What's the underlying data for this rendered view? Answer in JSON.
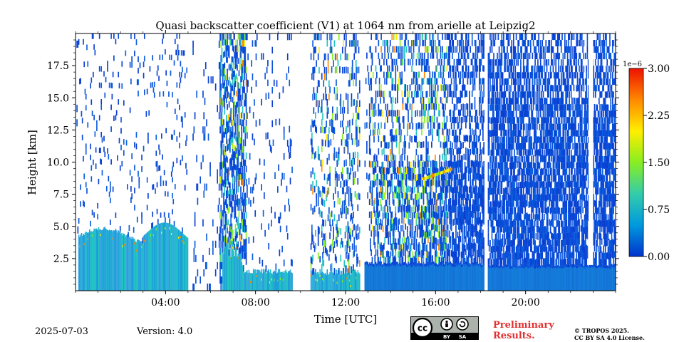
{
  "chart_data": {
    "type": "heatmap",
    "title": "Quasi backscatter coefficient (V1) at 1064 nm from arielle at Leipzig2",
    "xlabel": "Time [UTC]",
    "ylabel": "Height [km]",
    "xlim_hours": [
      0,
      24
    ],
    "ylim_km": [
      0,
      20
    ],
    "x_ticks": [
      {
        "value": 4,
        "label": "04:00"
      },
      {
        "value": 8,
        "label": "08:00"
      },
      {
        "value": 12,
        "label": "12:00"
      },
      {
        "value": 16,
        "label": "16:00"
      },
      {
        "value": 20,
        "label": "20:00"
      }
    ],
    "y_ticks": [
      {
        "value": 2.5,
        "label": "2.5"
      },
      {
        "value": 5.0,
        "label": "5.0"
      },
      {
        "value": 7.5,
        "label": "7.5"
      },
      {
        "value": 10.0,
        "label": "10.0"
      },
      {
        "value": 12.5,
        "label": "12.5"
      },
      {
        "value": 15.0,
        "label": "15.0"
      },
      {
        "value": 17.5,
        "label": "17.5"
      }
    ],
    "colorbar": {
      "exponent_label": "1e−6",
      "range": [
        0,
        3.0
      ],
      "ticks": [
        "0.00",
        "0.75",
        "1.50",
        "2.25",
        "3.00"
      ],
      "colors": [
        "#0033cc",
        "#0099dd",
        "#33ccaa",
        "#88ee22",
        "#ffee00",
        "#ff8800",
        "#ee1100"
      ]
    },
    "gaps_hours": [
      [
        5.0,
        5.2
      ],
      [
        9.6,
        10.4
      ],
      [
        12.6,
        12.8
      ],
      [
        18.15,
        18.3
      ]
    ],
    "layers": [
      {
        "name": "boundary-layer",
        "start": 0.1,
        "end": 5.0,
        "top_km": 4.5
      },
      {
        "name": "afternoon-pbl",
        "start": 12.8,
        "end": 24.0,
        "top_km": 2.0
      }
    ]
  },
  "footer": {
    "date": "2025-07-03",
    "version": "Version: 4.0",
    "preliminary_line1": "Preliminary",
    "preliminary_line2": "Results.",
    "copyright_line1": "© TROPOS 2025.",
    "copyright_line2": "CC BY SA 4.0 License.",
    "badge_by": "BY",
    "badge_sa": "SA"
  }
}
